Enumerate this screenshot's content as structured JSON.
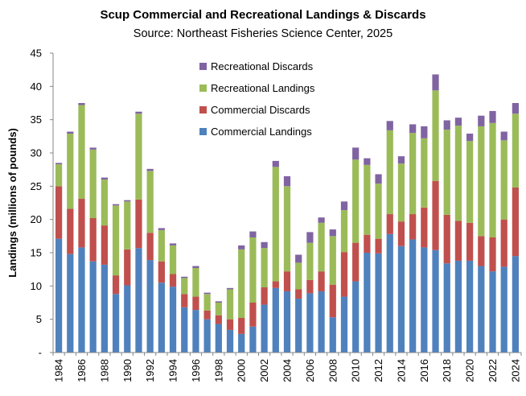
{
  "chart_data": {
    "type": "bar",
    "stacked": true,
    "title": "Scup Commercial and Recreational Landings & Discards",
    "subtitle": "Source: Northeast Fisheries Science Center, 2025",
    "xlabel": "",
    "ylabel": "Landings (millions of pounds)",
    "ylim": [
      0,
      45
    ],
    "yticks": [
      "-",
      "5",
      "10",
      "15",
      "20",
      "25",
      "30",
      "35",
      "40",
      "45"
    ],
    "grid": false,
    "legend_position": "top-center",
    "categories": [
      1984,
      1985,
      1986,
      1987,
      1988,
      1989,
      1990,
      1991,
      1992,
      1993,
      1994,
      1995,
      1996,
      1997,
      1998,
      1999,
      2000,
      2001,
      2002,
      2003,
      2004,
      2005,
      2006,
      2007,
      2008,
      2009,
      2010,
      2011,
      2012,
      2013,
      2014,
      2015,
      2016,
      2017,
      2018,
      2019,
      2020,
      2021,
      2022,
      2023,
      2024
    ],
    "xtick_labels": [
      "1984",
      "1986",
      "1988",
      "1990",
      "1992",
      "1994",
      "1996",
      "1998",
      "2000",
      "2002",
      "2004",
      "2006",
      "2008",
      "2010",
      "2012",
      "2014",
      "2016",
      "2018",
      "2020",
      "2022",
      "2024"
    ],
    "series": [
      {
        "name": "Commercial Landings",
        "color": "#4f81bd",
        "values": [
          17.1,
          14.8,
          15.8,
          13.7,
          13.2,
          8.8,
          10.1,
          15.7,
          13.9,
          10.5,
          9.9,
          6.8,
          6.4,
          5.0,
          4.3,
          3.4,
          2.8,
          3.9,
          7.2,
          9.7,
          9.2,
          8.1,
          8.9,
          9.2,
          5.3,
          8.4,
          10.7,
          15.0,
          14.9,
          17.8,
          16.0,
          17.0,
          15.8,
          15.4,
          13.4,
          13.8,
          13.8,
          13.0,
          12.2,
          12.9,
          14.5
        ]
      },
      {
        "name": "Commercial Discards",
        "color": "#c0504d",
        "values": [
          7.9,
          6.8,
          7.3,
          6.5,
          5.9,
          2.8,
          5.4,
          7.3,
          4.1,
          3.2,
          1.9,
          2.0,
          2.0,
          1.3,
          1.3,
          1.6,
          2.4,
          3.6,
          2.6,
          1.0,
          3.0,
          1.4,
          2.0,
          3.0,
          4.9,
          6.7,
          5.8,
          2.7,
          2.2,
          3.0,
          3.7,
          3.8,
          6.0,
          10.4,
          7.3,
          6.0,
          5.7,
          4.5,
          5.1,
          7.1,
          10.3
        ]
      },
      {
        "name": "Recreational Landings",
        "color": "#9bbb59",
        "values": [
          3.3,
          11.3,
          14.1,
          10.3,
          6.9,
          10.5,
          7.2,
          12.9,
          9.3,
          4.7,
          4.3,
          2.4,
          4.3,
          2.5,
          1.9,
          4.5,
          10.3,
          9.8,
          5.9,
          17.2,
          12.8,
          4.0,
          5.6,
          7.3,
          7.3,
          6.3,
          12.5,
          10.5,
          8.3,
          12.6,
          8.7,
          12.2,
          10.4,
          13.6,
          12.8,
          14.3,
          12.3,
          16.5,
          17.2,
          11.9,
          11.1
        ]
      },
      {
        "name": "Recreational Discards",
        "color": "#8064a2",
        "values": [
          0.2,
          0.3,
          0.3,
          0.3,
          0.3,
          0.2,
          0.2,
          0.3,
          0.3,
          0.3,
          0.3,
          0.2,
          0.3,
          0.2,
          0.2,
          0.2,
          0.6,
          0.9,
          0.9,
          0.9,
          1.5,
          1.2,
          1.6,
          0.8,
          1.0,
          1.3,
          1.8,
          1.0,
          1.4,
          1.4,
          1.1,
          1.3,
          1.8,
          2.4,
          1.4,
          1.2,
          1.1,
          1.6,
          1.8,
          1.3,
          1.6
        ]
      }
    ]
  }
}
